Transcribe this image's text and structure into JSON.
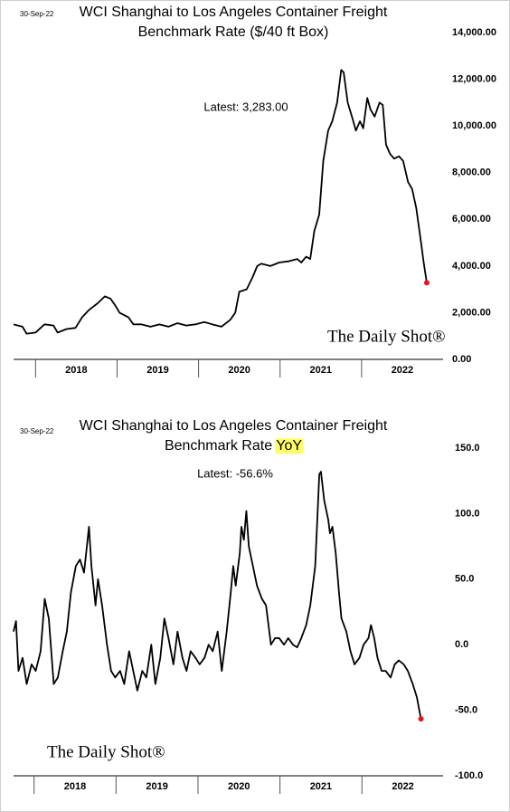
{
  "chart_data": [
    {
      "type": "line",
      "date": "30-Sep-22",
      "title": [
        "WCI Shanghai to Los Angeles Container Freight",
        "Benchmark Rate ($/40 ft Box)"
      ],
      "annotation": "Latest:  3,283.00",
      "watermark": "The Daily Shot®",
      "x": [
        2017.73,
        2017.84,
        2017.89,
        2018.0,
        2018.11,
        2018.22,
        2018.27,
        2018.38,
        2018.49,
        2018.57,
        2018.65,
        2018.76,
        2018.85,
        2018.92,
        2018.98,
        2019.03,
        2019.14,
        2019.2,
        2019.3,
        2019.41,
        2019.52,
        2019.63,
        2019.74,
        2019.85,
        2019.96,
        2020.07,
        2020.17,
        2020.28,
        2020.39,
        2020.45,
        2020.5,
        2020.59,
        2020.66,
        2020.72,
        2020.77,
        2020.88,
        2020.99,
        2021.1,
        2021.21,
        2021.26,
        2021.32,
        2021.37,
        2021.42,
        2021.48,
        2021.53,
        2021.59,
        2021.64,
        2021.7,
        2021.75,
        2021.78,
        2021.83,
        2021.89,
        2021.93,
        2021.98,
        2022.02,
        2022.07,
        2022.11,
        2022.16,
        2022.22,
        2022.26,
        2022.3,
        2022.35,
        2022.4,
        2022.46,
        2022.51,
        2022.57,
        2022.62,
        2022.67,
        2022.73,
        2022.76,
        2022.8
      ],
      "series": [
        {
          "name": "WCI Shanghai to Los Angeles",
          "color": "#000000",
          "values": [
            1500,
            1400,
            1100,
            1150,
            1500,
            1450,
            1150,
            1300,
            1350,
            1800,
            2100,
            2400,
            2700,
            2600,
            2300,
            2000,
            1800,
            1500,
            1500,
            1400,
            1500,
            1400,
            1550,
            1450,
            1500,
            1600,
            1500,
            1400,
            1700,
            2000,
            2900,
            3000,
            3500,
            4000,
            4100,
            4000,
            4150,
            4200,
            4300,
            4150,
            4400,
            4300,
            5500,
            6200,
            8500,
            9800,
            10200,
            11000,
            12400,
            12300,
            11000,
            10300,
            9800,
            10200,
            9900,
            11200,
            10700,
            10400,
            11000,
            10900,
            9200,
            8800,
            8600,
            8700,
            8500,
            7600,
            7300,
            6500,
            5000,
            4200,
            3283
          ]
        }
      ],
      "latest_color": "#e8141c",
      "xlim": [
        2017.73,
        2023.0
      ],
      "xticks": [
        {
          "value": 2018.5,
          "label": "2018"
        },
        {
          "value": 2019.5,
          "label": "2019"
        },
        {
          "value": 2020.5,
          "label": "2020"
        },
        {
          "value": 2021.5,
          "label": "2021"
        },
        {
          "value": 2022.5,
          "label": "2022"
        }
      ],
      "ylim": [
        0,
        14000
      ],
      "yticks": [
        {
          "value": 0,
          "label": "0.00"
        },
        {
          "value": 2000,
          "label": "2,000.00"
        },
        {
          "value": 4000,
          "label": "4,000.00"
        },
        {
          "value": 6000,
          "label": "6,000.00"
        },
        {
          "value": 8000,
          "label": "8,000.00"
        },
        {
          "value": 10000,
          "label": "10,000.00"
        },
        {
          "value": 12000,
          "label": "12,000.00"
        },
        {
          "value": 14000,
          "label": "14,000.00"
        }
      ],
      "grid": false
    },
    {
      "type": "line",
      "date": "30-Sep-22",
      "title": [
        "WCI Shanghai to Los Angeles Container Freight",
        "Benchmark Rate"
      ],
      "title_highlight": "YoY",
      "annotation": "Latest:  -56.6%",
      "watermark": "The Daily Shot®",
      "x": [
        2017.75,
        2017.78,
        2017.81,
        2017.86,
        2017.91,
        2017.97,
        2018.02,
        2018.08,
        2018.13,
        2018.18,
        2018.24,
        2018.29,
        2018.35,
        2018.4,
        2018.45,
        2018.51,
        2018.56,
        2018.61,
        2018.67,
        2018.7,
        2018.75,
        2018.78,
        2018.83,
        2018.89,
        2018.94,
        2018.99,
        2019.05,
        2019.1,
        2019.16,
        2019.21,
        2019.26,
        2019.32,
        2019.37,
        2019.43,
        2019.48,
        2019.54,
        2019.59,
        2019.64,
        2019.7,
        2019.75,
        2019.81,
        2019.86,
        2019.91,
        2019.97,
        2020.02,
        2020.08,
        2020.13,
        2020.18,
        2020.24,
        2020.29,
        2020.35,
        2020.4,
        2020.43,
        2020.46,
        2020.51,
        2020.53,
        2020.56,
        2020.59,
        2020.62,
        2020.67,
        2020.72,
        2020.78,
        2020.83,
        2020.89,
        2020.94,
        2020.99,
        2021.05,
        2021.1,
        2021.16,
        2021.21,
        2021.26,
        2021.32,
        2021.37,
        2021.43,
        2021.48,
        2021.5,
        2021.54,
        2021.59,
        2021.61,
        2021.64,
        2021.68,
        2021.72,
        2021.75,
        2021.81,
        2021.86,
        2021.91,
        2021.97,
        2022.02,
        2022.08,
        2022.11,
        2022.15,
        2022.19,
        2022.24,
        2022.29,
        2022.35,
        2022.4,
        2022.45,
        2022.51,
        2022.56,
        2022.62,
        2022.67,
        2022.72
      ],
      "series": [
        {
          "name": "WCI Shanghai to Los Angeles YoY",
          "color": "#000000",
          "values": [
            10,
            18,
            -20,
            -10,
            -30,
            -15,
            -20,
            -5,
            35,
            20,
            -30,
            -25,
            -5,
            10,
            40,
            60,
            65,
            55,
            90,
            60,
            30,
            50,
            30,
            0,
            -20,
            -25,
            -20,
            -30,
            -5,
            -20,
            -35,
            -20,
            -25,
            0,
            -30,
            -10,
            20,
            5,
            -15,
            10,
            -10,
            -20,
            -5,
            -10,
            -15,
            -10,
            0,
            -5,
            10,
            -20,
            10,
            40,
            60,
            45,
            70,
            90,
            80,
            102,
            75,
            60,
            45,
            35,
            30,
            0,
            5,
            5,
            0,
            5,
            0,
            -2,
            5,
            15,
            30,
            60,
            130,
            132,
            110,
            95,
            85,
            90,
            70,
            40,
            20,
            10,
            -5,
            -15,
            -10,
            0,
            5,
            15,
            5,
            -10,
            -20,
            -20,
            -25,
            -15,
            -12,
            -15,
            -20,
            -30,
            -40,
            -56.6
          ]
        }
      ],
      "latest_color": "#e8141c",
      "highlight_color": "#ffff66",
      "xlim": [
        2017.75,
        2022.99
      ],
      "xticks": [
        {
          "value": 2018.5,
          "label": "2018"
        },
        {
          "value": 2019.5,
          "label": "2019"
        },
        {
          "value": 2020.5,
          "label": "2020"
        },
        {
          "value": 2021.5,
          "label": "2021"
        },
        {
          "value": 2022.5,
          "label": "2022"
        }
      ],
      "ylim": [
        -100,
        150
      ],
      "yticks": [
        {
          "value": -100,
          "label": "-100.0"
        },
        {
          "value": -50,
          "label": "-50.0"
        },
        {
          "value": 0,
          "label": "0.0"
        },
        {
          "value": 50,
          "label": "50.0"
        },
        {
          "value": 100,
          "label": "100.0"
        },
        {
          "value": 150,
          "label": "150.0"
        }
      ],
      "grid": false
    }
  ]
}
